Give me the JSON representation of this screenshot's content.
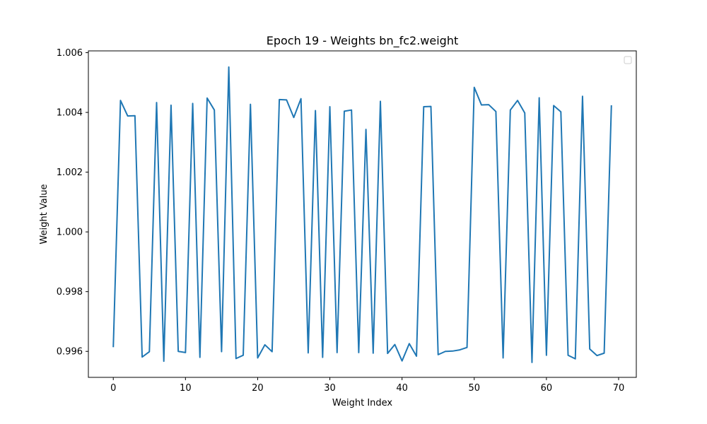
{
  "chart_data": {
    "type": "line",
    "title": "Epoch 19 - Weights bn_fc2.weight",
    "xlabel": "Weight Index",
    "ylabel": "Weight Value",
    "xlim": [
      -3.45,
      72.45
    ],
    "ylim": [
      0.99513,
      1.00606
    ],
    "xticks": [
      0,
      10,
      20,
      30,
      40,
      50,
      60,
      70
    ],
    "yticks": [
      0.996,
      0.998,
      1.0,
      1.002,
      1.004,
      1.006
    ],
    "ytick_labels": [
      "0.996",
      "0.998",
      "1.000",
      "1.002",
      "1.004",
      "1.006"
    ],
    "grid": false,
    "legend": "top-right",
    "line_color": "#1f77b4",
    "series": [
      {
        "x": [
          0,
          1,
          2,
          3,
          4,
          5,
          6,
          7,
          8,
          9,
          10,
          11,
          12,
          13,
          14,
          15,
          16,
          17,
          18,
          19,
          20,
          21,
          22,
          23,
          24,
          25,
          26,
          27,
          28,
          29,
          30,
          31,
          32,
          33,
          34,
          35,
          36,
          37,
          38,
          39,
          40,
          41,
          42,
          43,
          44,
          45,
          46,
          47,
          48,
          49,
          50,
          51,
          52,
          53,
          54,
          55,
          56,
          57,
          58,
          59,
          60,
          61,
          62,
          63,
          64,
          65,
          66,
          67,
          68,
          69
        ],
        "values": [
          0.99614,
          1.0044,
          1.00388,
          1.00389,
          0.99581,
          0.99599,
          1.00433,
          0.99567,
          1.00424,
          0.996,
          0.99596,
          1.0043,
          0.9958,
          1.00448,
          1.00408,
          0.99599,
          1.00552,
          0.99576,
          0.99587,
          1.00427,
          0.99578,
          0.99622,
          0.99599,
          1.00443,
          1.00442,
          1.00383,
          1.00446,
          0.99595,
          1.00406,
          0.9958,
          1.00419,
          0.99596,
          1.00404,
          1.00408,
          0.99596,
          1.00343,
          0.99594,
          1.00437,
          0.99593,
          0.99623,
          0.99568,
          0.99626,
          0.99584,
          1.00419,
          1.0042,
          0.99589,
          0.996,
          0.99601,
          0.99605,
          0.99613,
          1.00484,
          1.00425,
          1.00426,
          1.00403,
          0.99578,
          1.00408,
          1.0044,
          1.00398,
          0.99563,
          1.00449,
          0.99587,
          1.00423,
          1.00402,
          0.99587,
          0.99575,
          1.00454,
          0.99608,
          0.99586,
          0.99594,
          1.00424
        ]
      }
    ]
  }
}
